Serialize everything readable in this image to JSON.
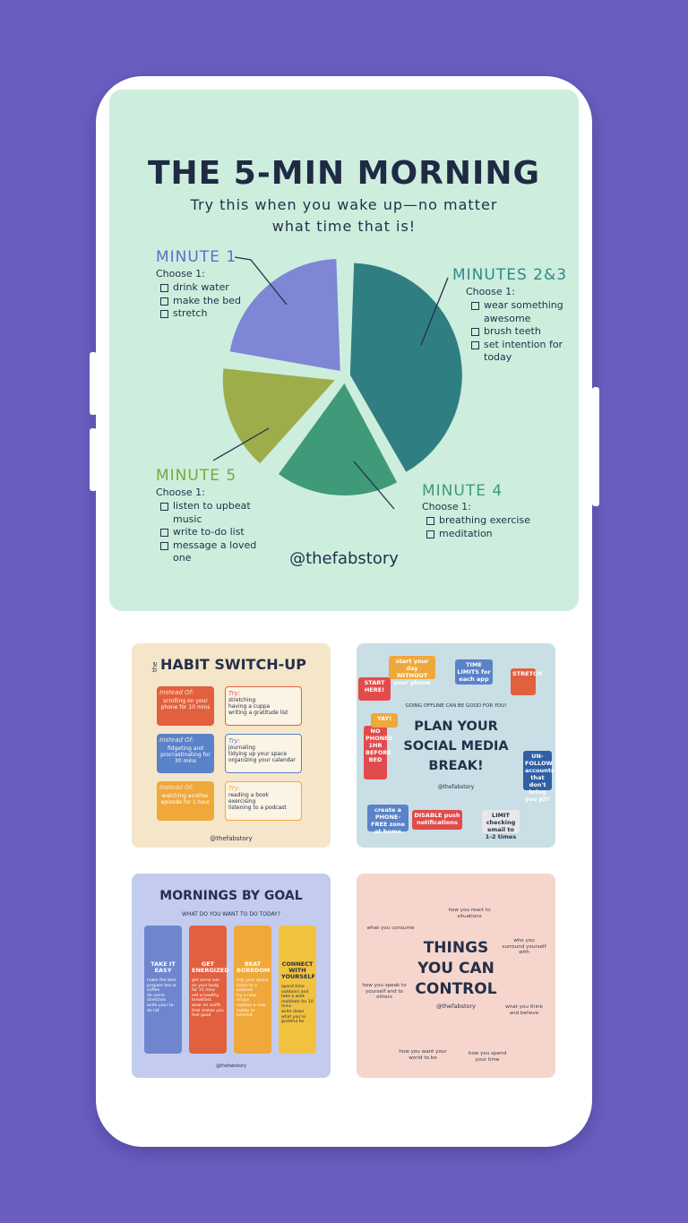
{
  "main_post": {
    "title": "THE 5-MIN MORNING",
    "subtitle_lines": [
      "Try this when you wake up—no matter",
      "what time that is!"
    ],
    "sections": [
      {
        "heading": "MINUTE 1",
        "prompt": "Choose 1:",
        "items": [
          "drink water",
          "make the bed",
          "stretch"
        ]
      },
      {
        "heading": "MINUTES 2&3",
        "prompt": "Choose 1:",
        "items": [
          "wear something awesome",
          "brush teeth",
          "set intention for today"
        ]
      },
      {
        "heading": "MINUTE 4",
        "prompt": "Choose 1:",
        "items": [
          "breathing exercise",
          "meditation"
        ]
      },
      {
        "heading": "MINUTE 5",
        "prompt": "Choose 1:",
        "items": [
          "listen to upbeat music",
          "write to-do list",
          "message a loved one"
        ]
      }
    ],
    "handle": "@thefabstory"
  },
  "habit_post": {
    "prefix": "the",
    "title": "HABIT SWITCH-UP",
    "rows": [
      {
        "instead_label": "Instead Of:",
        "instead": "scrolling on your phone for 10 mins",
        "try_label": "Try:",
        "tries": [
          "stretching",
          "having a cuppa",
          "writing a gratitude list"
        ]
      },
      {
        "instead_label": "Instead Of:",
        "instead": "fidgeting and procrastinating for 30 mins",
        "try_label": "Try:",
        "tries": [
          "journaling",
          "tidying up your space",
          "organizing your calendar"
        ]
      },
      {
        "instead_label": "Instead Of:",
        "instead": "watching another episode for 1 hour",
        "try_label": "Try:",
        "tries": [
          "reading a book",
          "exercising",
          "listening to a podcast"
        ]
      }
    ],
    "handle": "@thefabstory"
  },
  "social_post": {
    "kicker": "GOING OFFLINE CAN BE GOOD FOR YOU!",
    "title_lines": [
      "PLAN YOUR",
      "SOCIAL MEDIA",
      "BREAK!"
    ],
    "handle": "@thefabstory",
    "tiles": [
      "START HERE!",
      "start your day WITHOUT your phone",
      "TIME LIMITS for each app",
      "STRETCH",
      "UN-FOLLOW accounts that don't bring you JOY",
      "LIMIT checking email to 1-2 times",
      "DISABLE push notifications",
      "create a PHONE-FREE zone at home",
      "NO PHONES 1HR BEFORE BED",
      "YAY!"
    ]
  },
  "goal_post": {
    "title": "MORNINGS BY GOAL",
    "subtitle": "WHAT DO YOU WANT TO DO TODAY?",
    "columns": [
      {
        "heading": "TAKE IT EASY",
        "items": [
          "make the bed",
          "prepare tea or coffee",
          "do some stretches",
          "write your to-do list"
        ]
      },
      {
        "heading": "GET ENERGIZED",
        "items": [
          "get some sun on your body for 15 mins",
          "eat a healthy breakfast",
          "wear an outfit that makes you feel good"
        ]
      },
      {
        "heading": "BEAT BOREDOM",
        "items": [
          "tidy your space",
          "listen to a podcast",
          "try a new recipe",
          "explore a new hobby or interest"
        ]
      },
      {
        "heading": "CONNECT WITH YOURSELF",
        "items": [
          "spend time outdoors and take a walk",
          "meditate for 10 mins",
          "write down what you're grateful for"
        ]
      }
    ],
    "handle": "@thefabstory"
  },
  "control_post": {
    "title_lines": [
      "THINGS",
      "YOU CAN",
      "CONTROL"
    ],
    "handle": "@thefabstory",
    "labels": [
      "what you consume",
      "how you react to situations",
      "who you surround yourself with",
      "how you speak to yourself and to others",
      "what you think and believe",
      "how you want your world to be",
      "how you spend your time"
    ]
  }
}
